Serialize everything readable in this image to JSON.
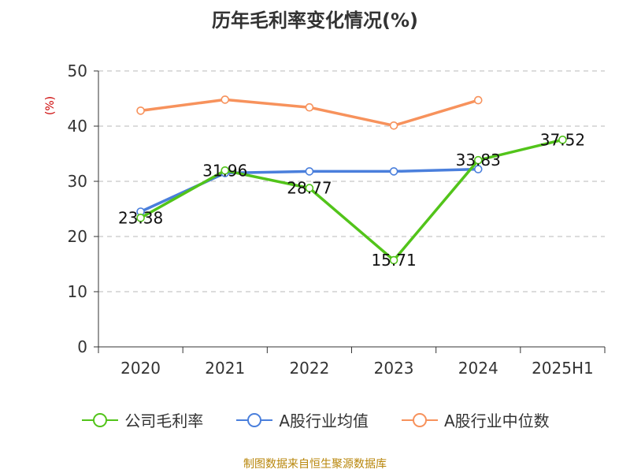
{
  "chart_data": {
    "type": "line",
    "title": "历年毛利率变化情况(%)",
    "ylabel": "(%)",
    "xlabel": "",
    "categories": [
      "2020",
      "2021",
      "2022",
      "2023",
      "2024",
      "2025H1"
    ],
    "ylim": [
      0,
      50
    ],
    "yticks": [
      0,
      10,
      20,
      30,
      40,
      50
    ],
    "grid": "dashed-horizontal",
    "legend_position": "bottom",
    "series": [
      {
        "name": "公司毛利率",
        "color": "#52c41a",
        "values": [
          23.38,
          31.96,
          28.77,
          15.71,
          33.83,
          37.52
        ],
        "labels": [
          "23.38",
          "31.96",
          "28.77",
          "15.71",
          "33.83",
          "37.52"
        ]
      },
      {
        "name": "A股行业均值",
        "color": "#4a7fdc",
        "values": [
          24.5,
          31.5,
          31.8,
          31.8,
          32.2,
          null
        ]
      },
      {
        "name": "A股行业中位数",
        "color": "#f7925c",
        "values": [
          42.8,
          44.8,
          43.4,
          40.1,
          44.7,
          null
        ]
      }
    ]
  },
  "source": "制图数据来自恒生聚源数据库"
}
